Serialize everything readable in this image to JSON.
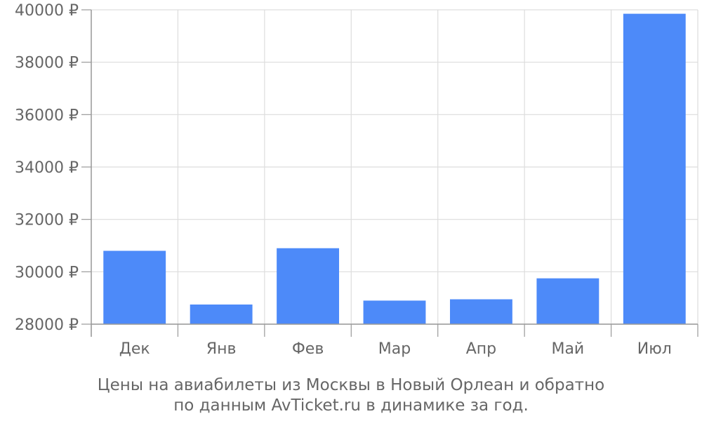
{
  "chart_data": {
    "type": "bar",
    "categories": [
      "Дек",
      "Янв",
      "Фев",
      "Мар",
      "Апр",
      "Май",
      "Июл"
    ],
    "values": [
      30800,
      28750,
      30900,
      28900,
      28950,
      29750,
      39850
    ],
    "ylim": [
      28000,
      40000
    ],
    "y_ticks": [
      28000,
      30000,
      32000,
      34000,
      36000,
      38000,
      40000
    ],
    "y_tick_suffix": " ₽",
    "grid": true,
    "legend": "none",
    "bar_color": "#4d8af9",
    "grid_color": "#dddddd",
    "axis_color": "#999999",
    "text_color": "#666666",
    "caption": [
      "Цены на авиабилеты из Москвы в Новый Орлеан и обратно",
      "по данным AvTicket.ru в динамике за год."
    ]
  }
}
